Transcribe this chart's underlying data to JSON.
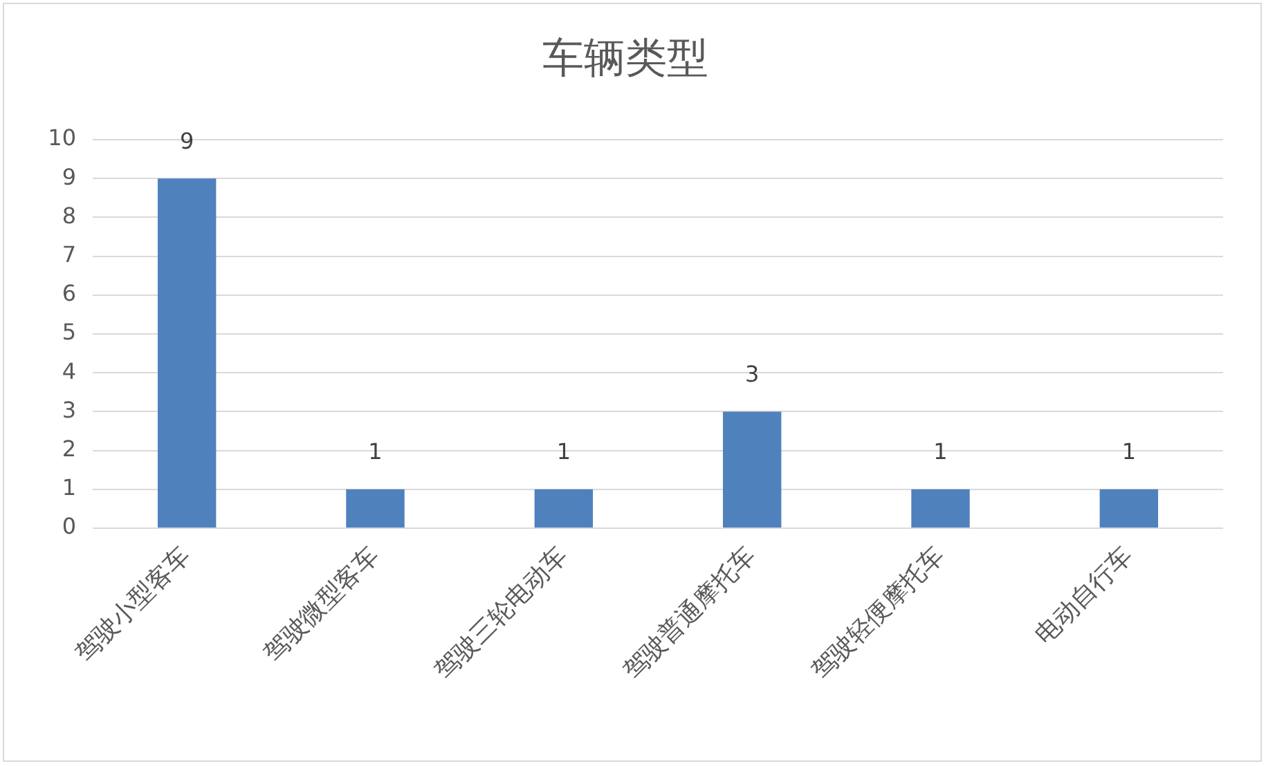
{
  "chart_data": {
    "type": "bar",
    "title": "车辆类型",
    "categories": [
      "驾驶小型客车",
      "驾驶微型客车",
      "驾驶三轮电动车",
      "驾驶普通摩托车",
      "驾驶轻便摩托车",
      "电动自行车"
    ],
    "values": [
      9,
      1,
      1,
      3,
      1,
      1
    ],
    "color": "#4f81bd",
    "ylim": [
      0,
      10
    ],
    "yticks": [
      0,
      1,
      2,
      3,
      4,
      5,
      6,
      7,
      8,
      9,
      10
    ],
    "grid": "y",
    "data_labels": true
  }
}
